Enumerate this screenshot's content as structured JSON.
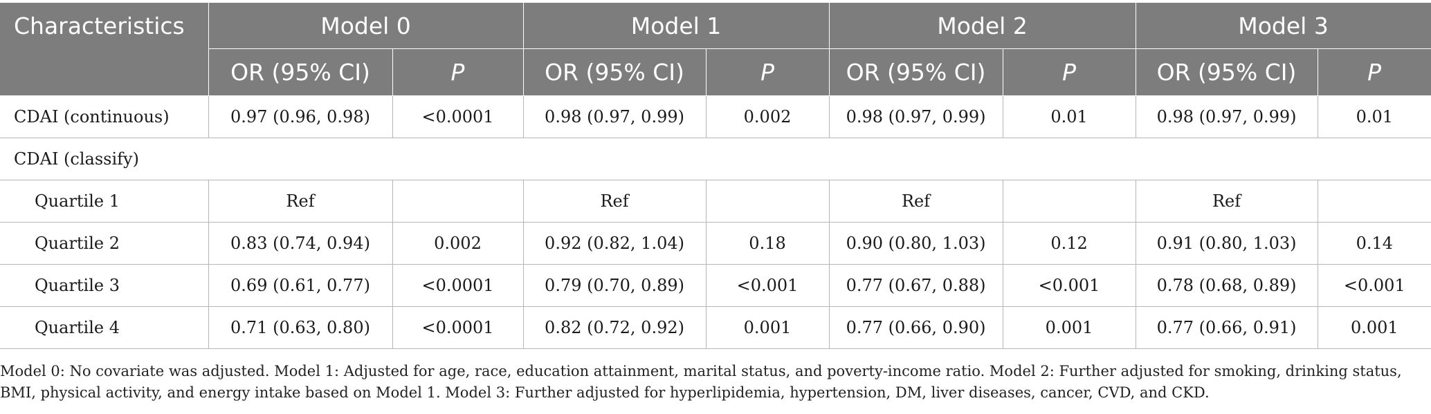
{
  "table": {
    "header": {
      "characteristics_label": "Characteristics",
      "models": [
        "Model 0",
        "Model 1",
        "Model 2",
        "Model 3"
      ],
      "sub_or": "OR (95% CI)",
      "sub_p": "P"
    },
    "rows": {
      "continuous": {
        "label": "CDAI (continuous)",
        "cells": [
          "0.97 (0.96, 0.98)",
          "<0.0001",
          "0.98 (0.97, 0.99)",
          "0.002",
          "0.98 (0.97, 0.99)",
          "0.01",
          "0.98 (0.97, 0.99)",
          "0.01"
        ]
      },
      "classify": {
        "label": "CDAI (classify)"
      },
      "q1": {
        "label": "Quartile 1",
        "cells": [
          "Ref",
          "",
          "Ref",
          "",
          "Ref",
          "",
          "Ref",
          ""
        ]
      },
      "q2": {
        "label": "Quartile 2",
        "cells": [
          "0.83 (0.74, 0.94)",
          "0.002",
          "0.92 (0.82, 1.04)",
          "0.18",
          "0.90 (0.80, 1.03)",
          "0.12",
          "0.91 (0.80, 1.03)",
          "0.14"
        ]
      },
      "q3": {
        "label": "Quartile 3",
        "cells": [
          "0.69 (0.61, 0.77)",
          "<0.0001",
          "0.79 (0.70, 0.89)",
          "<0.001",
          "0.77 (0.67, 0.88)",
          "<0.001",
          "0.78 (0.68, 0.89)",
          "<0.001"
        ]
      },
      "q4": {
        "label": "Quartile 4",
        "cells": [
          "0.71 (0.63, 0.80)",
          "<0.0001",
          "0.82 (0.72, 0.92)",
          "0.001",
          "0.77 (0.66, 0.90)",
          "0.001",
          "0.77 (0.66, 0.91)",
          "0.001"
        ]
      }
    }
  },
  "footnote": {
    "line1": "Model 0: No covariate was adjusted. Model 1: Adjusted for age, race, education attainment, marital status, and poverty-income ratio. Model 2: Further adjusted for smoking, drinking status,",
    "line2": "BMI, physical activity, and energy intake based on Model 1. Model 3: Further adjusted for hyperlipidemia, hypertension, DM, liver diseases, cancer, CVD, and CKD."
  },
  "colors": {
    "header_bg": "#7d7d7d",
    "header_text": "#ffffff",
    "grid_line": "#b5b5b5"
  }
}
